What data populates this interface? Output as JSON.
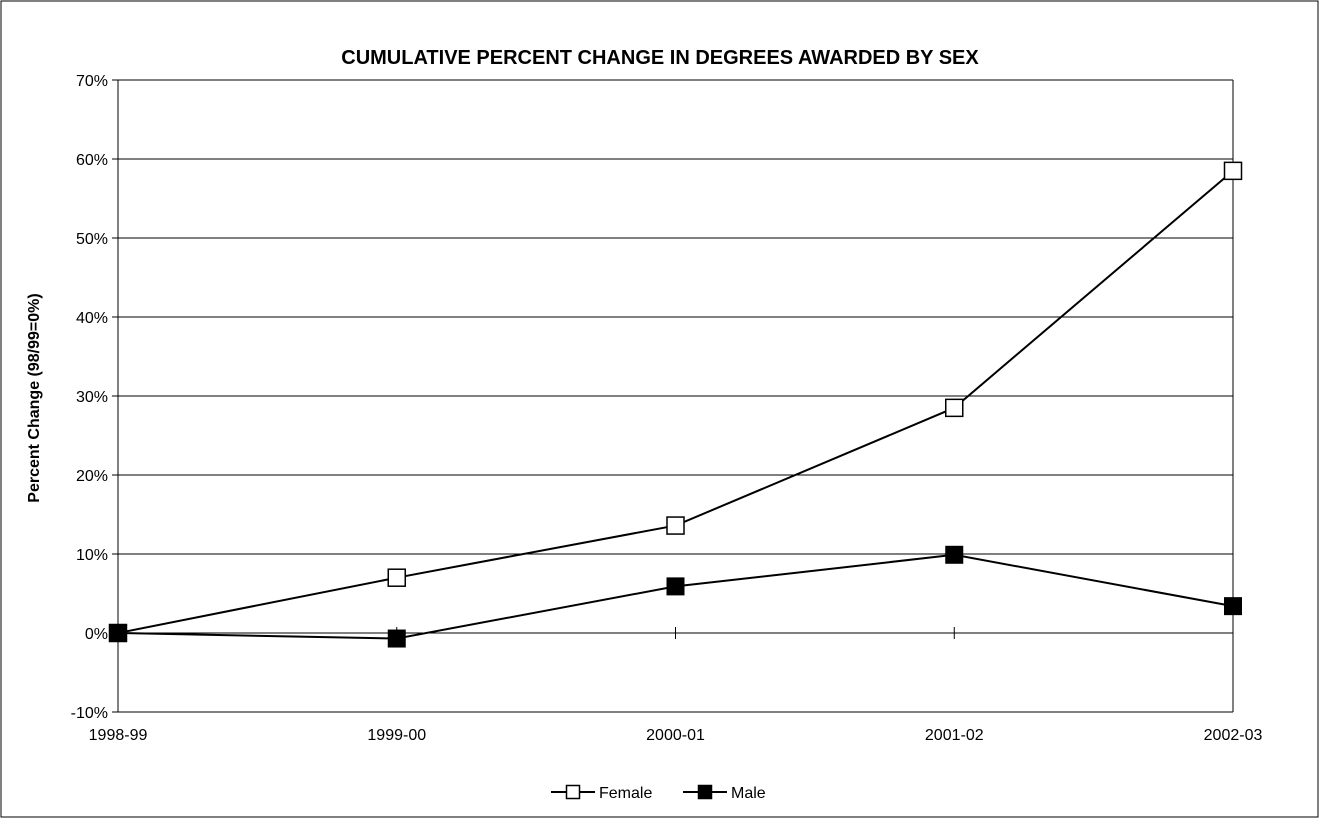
{
  "chart_data": {
    "type": "line",
    "title": "CUMULATIVE PERCENT CHANGE IN DEGREES AWARDED BY SEX",
    "xlabel": "",
    "ylabel": "Percent Change (98/99=0%)",
    "categories": [
      "1998-99",
      "1999-00",
      "2000-01",
      "2001-02",
      "2002-03"
    ],
    "ylim": [
      -10,
      70
    ],
    "yticks": [
      -10,
      0,
      10,
      20,
      30,
      40,
      50,
      60,
      70
    ],
    "ytick_labels": [
      "-10%",
      "0%",
      "10%",
      "20%",
      "30%",
      "40%",
      "50%",
      "60%",
      "70%"
    ],
    "grid": true,
    "legend_position": "bottom",
    "series": [
      {
        "name": "Female",
        "values": [
          0,
          7,
          13.6,
          28.5,
          58.5
        ],
        "marker": "hollow-square",
        "color": "#000000"
      },
      {
        "name": "Male",
        "values": [
          0,
          -0.7,
          5.9,
          9.9,
          3.4
        ],
        "marker": "filled-square",
        "color": "#000000"
      }
    ]
  }
}
